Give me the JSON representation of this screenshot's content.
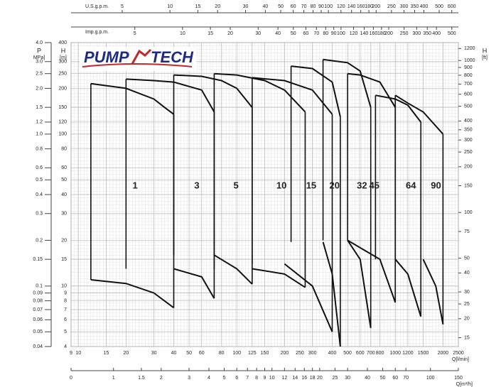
{
  "chart_data": {
    "type": "pump-curves",
    "logo": [
      "PUMP",
      "TECH"
    ],
    "y_title": "H",
    "y_unit": "[m]",
    "p_title": "P",
    "p_unit": "MPa]",
    "y2_title": "H",
    "y2_unit": "[ft]",
    "x_title": "Q[l/min]",
    "x2_title": "Q[m³/h]",
    "us_title": "U.S.g.p.m.",
    "imp_title": "Imp.g.p.m.",
    "ylim": [
      4,
      400
    ],
    "yticks": [
      400,
      300,
      250,
      200,
      150,
      120,
      100,
      80,
      60,
      50,
      40,
      30,
      20,
      15,
      10,
      9,
      8,
      7,
      6,
      5,
      4
    ],
    "plim": [
      0.04,
      4
    ],
    "pticks": [
      {
        "value": 4,
        "label": "4.0"
      },
      {
        "value": 3,
        "label": "3.0"
      },
      2.5,
      {
        "value": 2,
        "label": "2.0"
      },
      1.5,
      1.2,
      {
        "value": 1,
        "label": "1.0"
      },
      0.8,
      0.6,
      0.5,
      0.4,
      0.3,
      0.2,
      0.15,
      0.1,
      0.09,
      0.08,
      0.07,
      0.06,
      0.05,
      0.04
    ],
    "y2lim": [
      13.12,
      1312
    ],
    "y2ticks": [
      1200,
      1000,
      900,
      800,
      700,
      600,
      500,
      400,
      350,
      300,
      250,
      200,
      150,
      100,
      75,
      50,
      40,
      30,
      25,
      20,
      15
    ],
    "xlim": [
      9,
      2500
    ],
    "xticks": [
      9,
      10,
      15,
      20,
      30,
      40,
      50,
      60,
      80,
      100,
      125,
      150,
      200,
      250,
      300,
      400,
      500,
      600,
      700,
      800,
      1000,
      1200,
      1500,
      2000,
      2500
    ],
    "x2lim": [
      0.54,
      150
    ],
    "x2ticks": [
      0,
      1,
      1.5,
      2,
      3,
      4,
      5,
      6,
      7,
      8,
      9,
      10,
      12,
      14,
      16,
      18,
      20,
      25,
      30,
      40,
      50,
      60,
      70,
      100,
      150
    ],
    "uslim": [
      2.378,
      660.5
    ],
    "usticks": [
      5,
      10,
      15,
      20,
      30,
      40,
      50,
      60,
      70,
      80,
      90,
      100,
      120,
      140,
      160,
      180,
      200,
      250,
      300,
      350,
      400,
      500,
      600
    ],
    "implim": [
      1.98,
      549.9
    ],
    "impticks": [
      5,
      10,
      15,
      20,
      30,
      40,
      50,
      60,
      70,
      80,
      90,
      100,
      120,
      140,
      160,
      180,
      200,
      250,
      300,
      350,
      400,
      500
    ],
    "grid": true,
    "color": "#111111",
    "models": [
      {
        "name": "1",
        "max": {
          "x": [
            12,
            20,
            30,
            35,
            40
          ],
          "values": [
            215,
            200,
            170,
            150,
            135
          ]
        },
        "min": {
          "x": [
            12,
            20,
            30,
            40
          ],
          "values": [
            11,
            10.4,
            9,
            7.2
          ]
        }
      },
      {
        "name": "3",
        "max": {
          "x": [
            20,
            30,
            40,
            60,
            72
          ],
          "values": [
            230,
            225,
            220,
            195,
            140
          ]
        },
        "min": {
          "x": [
            40,
            60,
            72
          ],
          "values": [
            13,
            11.5,
            8.3
          ]
        }
      },
      {
        "name": "5",
        "max": {
          "x": [
            40,
            60,
            80,
            100,
            125
          ],
          "values": [
            245,
            240,
            225,
            200,
            150
          ]
        },
        "min": {
          "x": [
            72,
            100,
            125
          ],
          "values": [
            16,
            13,
            10.3
          ]
        }
      },
      {
        "name": "10",
        "max": {
          "x": [
            72,
            100,
            150,
            200,
            270
          ],
          "values": [
            250,
            245,
            225,
            195,
            140
          ]
        },
        "min": {
          "x": [
            125,
            200,
            270
          ],
          "values": [
            13,
            12,
            9.8
          ]
        }
      },
      {
        "name": "15",
        "max": {
          "x": [
            125,
            200,
            300,
            400
          ],
          "values": [
            235,
            225,
            195,
            135
          ]
        },
        "min": {
          "x": [
            200,
            300,
            400
          ],
          "values": [
            14,
            10,
            5
          ]
        }
      },
      {
        "name": "20",
        "max": {
          "x": [
            220,
            300,
            400,
            450
          ],
          "values": [
            280,
            270,
            220,
            130
          ]
        },
        "min": {
          "x": [
            350,
            400,
            450
          ],
          "values": [
            19.5,
            12,
            4
          ]
        }
      },
      {
        "name": "32",
        "max": {
          "x": [
            350,
            500,
            600,
            700
          ],
          "values": [
            310,
            295,
            260,
            150
          ]
        },
        "min": {
          "x": [
            500,
            600,
            700
          ],
          "values": [
            20,
            15,
            5.3
          ]
        }
      },
      {
        "name": "45",
        "max": {
          "x": [
            500,
            600,
            800,
            1000
          ],
          "values": [
            250,
            245,
            220,
            150
          ]
        },
        "min": {
          "x": [
            500,
            800,
            1000
          ],
          "values": [
            20,
            15,
            7.8
          ]
        }
      },
      {
        "name": "64",
        "max": {
          "x": [
            750,
            1000,
            1200,
            1450
          ],
          "values": [
            180,
            170,
            155,
            120
          ]
        },
        "min": {
          "x": [
            1000,
            1200,
            1450
          ],
          "values": [
            15,
            12,
            6.3
          ]
        }
      },
      {
        "name": "90",
        "max": {
          "x": [
            1000,
            1200,
            1500,
            2000
          ],
          "values": [
            180,
            160,
            140,
            100
          ]
        },
        "min": {
          "x": [
            1500,
            1800,
            2000
          ],
          "values": [
            15,
            10,
            5.6
          ]
        }
      }
    ]
  }
}
